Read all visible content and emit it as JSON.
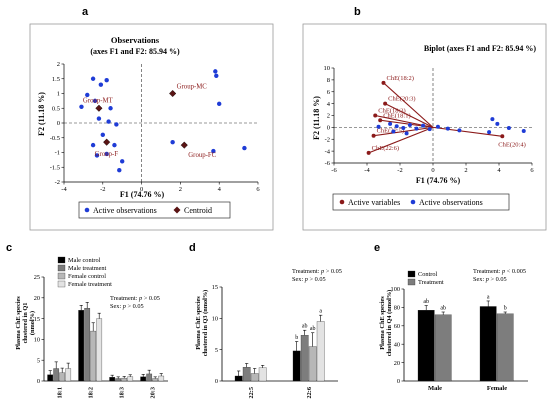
{
  "chart_data": [
    {
      "panel": "a",
      "type": "scatter",
      "title": "Observations",
      "subtitle": "(axes F1 and F2: 85.94 %)",
      "xlabel": "F1 (74.76 %)",
      "ylabel": "F2 (11.18 %)",
      "xlim": [
        -4,
        6
      ],
      "ylim": [
        -2,
        2
      ],
      "xticks": [
        -4,
        -2,
        0,
        2,
        4,
        6
      ],
      "yticks": [
        -2,
        -1.5,
        -1,
        -0.5,
        0,
        0.5,
        1,
        1.5,
        2
      ],
      "legend": {
        "position": "bottom",
        "entries": [
          "Active observations",
          "Centroid"
        ]
      },
      "series": [
        {
          "name": "Active observations",
          "color": "#1f3cd6",
          "points": [
            [
              -2.5,
              1.5
            ],
            [
              -2.1,
              1.3
            ],
            [
              -1.8,
              1.45
            ],
            [
              -2.8,
              0.95
            ],
            [
              -2.4,
              0.75
            ],
            [
              -3.1,
              0.55
            ],
            [
              -1.6,
              0.5
            ],
            [
              -2.2,
              0.15
            ],
            [
              -1.7,
              0.05
            ],
            [
              -1.3,
              -0.05
            ],
            [
              -2.0,
              -0.4
            ],
            [
              -1.4,
              -0.75
            ],
            [
              -2.5,
              -0.75
            ],
            [
              -2.3,
              -1.1
            ],
            [
              -1.8,
              -1.05
            ],
            [
              -1.0,
              -1.3
            ],
            [
              -1.15,
              -1.6
            ],
            [
              3.8,
              1.75
            ],
            [
              3.85,
              1.6
            ],
            [
              4.0,
              0.65
            ],
            [
              5.3,
              -0.85
            ],
            [
              3.7,
              -0.95
            ],
            [
              1.6,
              -0.65
            ]
          ]
        },
        {
          "name": "Centroid",
          "color": "#5a1414",
          "points": [
            [
              -2.2,
              0.5
            ],
            [
              1.6,
              1.0
            ],
            [
              -1.8,
              -0.65
            ],
            [
              2.2,
              -0.75
            ]
          ]
        }
      ],
      "annotations": [
        {
          "text": "Group-MT",
          "x": -2.2,
          "y": 0.5
        },
        {
          "text": "Group-MC",
          "x": 1.6,
          "y": 1.0
        },
        {
          "text": "Group-F",
          "x": -1.8,
          "y": -0.65
        },
        {
          "text": "Group-FC",
          "x": 2.2,
          "y": -0.75
        }
      ]
    },
    {
      "panel": "b",
      "type": "scatter",
      "title": "Biplot (axes F1 and F2: 85.94 %)",
      "xlabel": "F1 (74.76 %)",
      "ylabel": "F2 (11.18 %)",
      "xlim": [
        -6,
        6
      ],
      "ylim": [
        -6,
        10
      ],
      "xticks": [
        -6,
        -4,
        -2,
        0,
        2,
        4,
        6
      ],
      "yticks": [
        -6,
        -4,
        -2,
        0,
        2,
        4,
        6,
        8,
        10
      ],
      "legend": {
        "position": "bottom",
        "entries": [
          "Active variables",
          "Active observations"
        ]
      },
      "variables": [
        {
          "name": "ChE(18:2)",
          "x": -3.0,
          "y": 7.5
        },
        {
          "name": "ChE(20:3)",
          "x": -2.9,
          "y": 4.0
        },
        {
          "name": "ChE(18:3)",
          "x": -3.5,
          "y": 2.0
        },
        {
          "name": "ChE(18:1)",
          "x": -3.2,
          "y": 1.2
        },
        {
          "name": "ChE(22:5)",
          "x": -3.6,
          "y": -1.4
        },
        {
          "name": "ChE(22:6)",
          "x": -3.9,
          "y": -4.3
        },
        {
          "name": "ChE(20:4)",
          "x": 4.2,
          "y": -1.5
        }
      ],
      "observations": [
        [
          -3.3,
          0.1
        ],
        [
          -2.6,
          0.6
        ],
        [
          -2.2,
          0.2
        ],
        [
          -1.8,
          -0.1
        ],
        [
          -1.4,
          0.4
        ],
        [
          -1.0,
          -0.2
        ],
        [
          -0.6,
          0.3
        ],
        [
          -0.2,
          -0.3
        ],
        [
          0.3,
          0.1
        ],
        [
          0.9,
          -0.2
        ],
        [
          3.6,
          1.4
        ],
        [
          3.9,
          0.6
        ],
        [
          4.6,
          -0.1
        ],
        [
          5.5,
          -0.6
        ],
        [
          3.4,
          -0.8
        ],
        [
          1.6,
          -0.5
        ],
        [
          -2.4,
          -0.7
        ],
        [
          -1.6,
          -1.0
        ]
      ],
      "colors": {
        "variables": "#8b1a1a",
        "observations": "#1f3cd6"
      }
    },
    {
      "panel": "c",
      "type": "bar",
      "ylabel": "Plasma ChE species clustered in Q1",
      "ylim": [
        0,
        25
      ],
      "yticks": [
        0,
        5,
        10,
        15,
        20,
        25
      ],
      "categories": [
        "18:1",
        "18:2",
        "18:3",
        "20:3"
      ],
      "series": [
        {
          "name": "Male control",
          "color": "#000000",
          "values": [
            1.5,
            17.0,
            0.9,
            1.0
          ],
          "errors": [
            1.0,
            1.2,
            0.5,
            0.6
          ]
        },
        {
          "name": "Male treatment",
          "color": "#7d7d7d",
          "values": [
            3.0,
            17.5,
            0.6,
            1.7
          ],
          "errors": [
            1.6,
            1.4,
            0.4,
            0.9
          ]
        },
        {
          "name": "Female control",
          "color": "#b7b7b7",
          "values": [
            2.0,
            12.0,
            0.7,
            0.6
          ],
          "errors": [
            1.1,
            2.0,
            0.4,
            0.4
          ]
        },
        {
          "name": "Female treatment",
          "color": "#e3e3e3",
          "values": [
            3.0,
            15.0,
            1.0,
            1.2
          ],
          "errors": [
            1.3,
            1.3,
            0.5,
            0.6
          ]
        }
      ],
      "annotation": "Treatment: p > 0.05\nSex: p > 0.05",
      "legend": {
        "position": "top-left"
      }
    },
    {
      "panel": "d",
      "type": "bar",
      "ylabel": "Plasma ChE species clustered in Q3 (nmol%)",
      "ylim": [
        0,
        15
      ],
      "yticks": [
        0,
        5,
        10,
        15
      ],
      "categories": [
        "22:5",
        "22:6"
      ],
      "series": [
        {
          "name": "Male control",
          "color": "#000000",
          "values": [
            0.8,
            4.8
          ],
          "errors": [
            0.8,
            1.5
          ],
          "labels": [
            "",
            "b"
          ]
        },
        {
          "name": "Male treatment",
          "color": "#7d7d7d",
          "values": [
            2.2,
            7.3
          ],
          "errors": [
            0.6,
            0.8
          ],
          "labels": [
            "",
            "ab"
          ]
        },
        {
          "name": "Female control",
          "color": "#b7b7b7",
          "values": [
            1.2,
            5.5
          ],
          "errors": [
            0.8,
            2.2
          ],
          "labels": [
            "",
            "ab"
          ]
        },
        {
          "name": "Female treatment",
          "color": "#e3e3e3",
          "values": [
            2.1,
            9.5
          ],
          "errors": [
            0.4,
            1.0
          ],
          "labels": [
            "",
            "a"
          ]
        }
      ],
      "annotation": "Treatment: p > 0.05\nSex: p > 0.05"
    },
    {
      "panel": "e",
      "type": "bar",
      "ylabel": "Plasma ChE species clustered in Q4 (nmol%)",
      "ylim": [
        0,
        100
      ],
      "yticks": [
        0,
        20,
        40,
        60,
        80,
        100
      ],
      "categories": [
        "Male",
        "Female"
      ],
      "series": [
        {
          "name": "Control",
          "color": "#000000",
          "values": [
            77,
            81
          ],
          "errors": [
            5,
            6
          ],
          "labels": [
            "ab",
            "a"
          ]
        },
        {
          "name": "Treatment",
          "color": "#7d7d7d",
          "values": [
            72,
            73
          ],
          "errors": [
            3,
            2
          ],
          "labels": [
            "ab",
            "b"
          ]
        }
      ],
      "annotation": "Treatment: p < 0.005\nSex: p > 0.05",
      "legend": {
        "position": "top-left"
      }
    }
  ],
  "panels": {
    "a": {
      "letter": "a",
      "title": "Observations",
      "subtitle": "(axes F1 and F2: 85.94 %)",
      "xlabel": "F1 (74.76 %)",
      "ylabel": "F2 (11.18 %)",
      "legend_observations": "Active observations",
      "legend_centroid": "Centroid"
    },
    "b": {
      "letter": "b",
      "title": "Biplot (axes F1 and F2: 85.94 %)",
      "xlabel": "F1 (74.76 %)",
      "ylabel": "F2 (11.18 %)",
      "legend_variables": "Active variables",
      "legend_observations": "Active observations"
    },
    "c": {
      "letter": "c",
      "ylabel_line1": "Plasma ChE species",
      "ylabel_line2": "clustered in Q1",
      "ylabel_unit": "(nmol%)",
      "stat_treatment": "Treatment: ",
      "stat_sex": "Sex: ",
      "stat_p": "p",
      "stat_treatment_val": " > 0.05",
      "stat_sex_val": " > 0.05"
    },
    "d": {
      "letter": "d",
      "ylabel_line1": "Plasma ChE species",
      "ylabel_line2": "clustered in Q3 (nmol%)",
      "stat_treatment": "Treatment: ",
      "stat_sex": "Sex: ",
      "stat_p": "p",
      "stat_treatment_val": " > 0.05",
      "stat_sex_val": " > 0.05"
    },
    "e": {
      "letter": "e",
      "ylabel_line1": "Plasma ChE species",
      "ylabel_line2": "clustered in Q4 (nmol%)",
      "stat_treatment": "Treatment: ",
      "stat_sex": "Sex: ",
      "stat_p": "p",
      "stat_treatment_val": " < 0.005",
      "stat_sex_val": " > 0.05"
    }
  }
}
